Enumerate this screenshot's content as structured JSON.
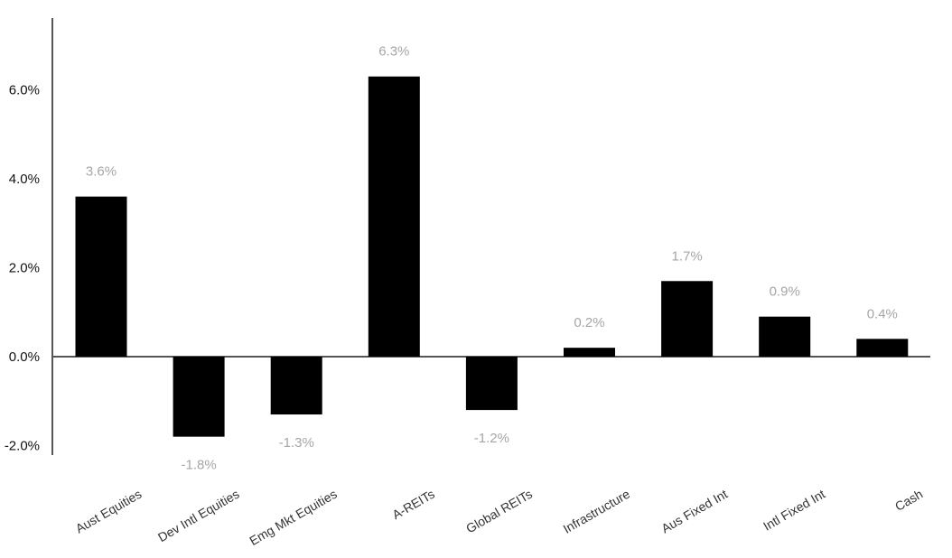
{
  "chart_data": {
    "type": "bar",
    "title": "",
    "xlabel": "",
    "ylabel": "",
    "categories": [
      "Aust Equities",
      "Dev Intl Equities",
      "Emg Mkt Equities",
      "A-REITs",
      "Global REITs",
      "Infrastructure",
      "Aus Fixed Int",
      "Intl Fixed Int",
      "Cash"
    ],
    "values": [
      3.6,
      -1.8,
      -1.3,
      6.3,
      -1.2,
      0.2,
      1.7,
      0.9,
      0.4
    ],
    "data_labels": [
      "3.6%",
      "-1.8%",
      "-1.3%",
      "6.3%",
      "-1.2%",
      "0.2%",
      "1.7%",
      "0.9%",
      "0.4%"
    ],
    "ylim": [
      -2.2,
      7.6
    ],
    "yticks": [
      -2,
      0,
      2,
      4,
      6
    ],
    "ytick_labels": [
      "-2.0%",
      "0.0%",
      "2.0%",
      "4.0%",
      "6.0%"
    ],
    "grid": false,
    "legend": "none",
    "bar_color": "#000000",
    "label_color": "#a6a6a6",
    "axis_color": "#555555"
  }
}
